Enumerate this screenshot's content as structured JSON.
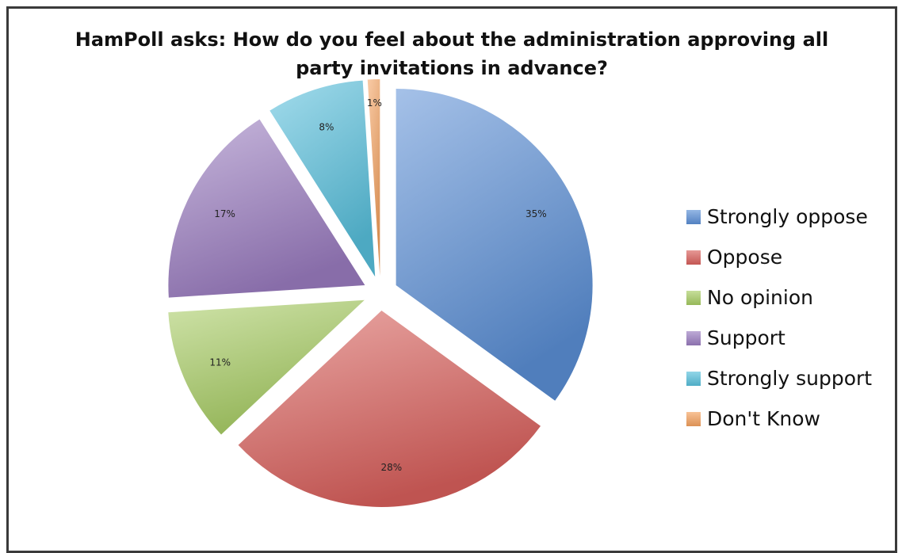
{
  "chart_data": {
    "type": "pie",
    "title": "HamPoll asks: How do you feel about the administration approving all party invitations in advance?",
    "title_lines": [
      "HamPoll asks: How do you feel about the administration approving all",
      "party invitations in advance?"
    ],
    "legend_position": "right",
    "exploded": true,
    "slices": [
      {
        "label": "Strongly oppose",
        "value": 35,
        "data_label": "35%",
        "color": "#5b8fd6"
      },
      {
        "label": "Oppose",
        "value": 28,
        "data_label": "28%",
        "color": "#d9605c"
      },
      {
        "label": "No opinion",
        "value": 11,
        "data_label": "11%",
        "color": "#a7cc63"
      },
      {
        "label": "Support",
        "value": 17,
        "data_label": "17%",
        "color": "#9a7cc0"
      },
      {
        "label": "Strongly support",
        "value": 8,
        "data_label": "8%",
        "color": "#58c0dc"
      },
      {
        "label": "Don't Know",
        "value": 1,
        "data_label": "1%",
        "color": "#f4a15e"
      }
    ]
  }
}
